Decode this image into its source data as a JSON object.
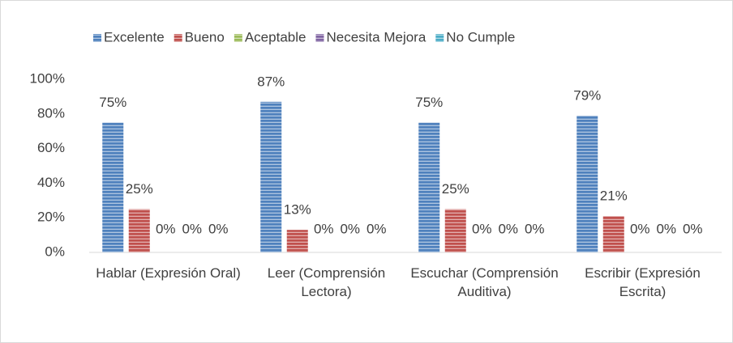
{
  "chart_data": {
    "type": "bar",
    "categories": [
      "Hablar (Expresión Oral)",
      "Leer (Comprensión Lectora)",
      "Escuchar (Comprensión Auditiva)",
      "Escribir (Expresión Escrita)"
    ],
    "series": [
      {
        "name": "Excelente",
        "color": "#4f81bd",
        "values": [
          75,
          87,
          75,
          79
        ],
        "value_labels": [
          "75%",
          "87%",
          "75%",
          "79%"
        ]
      },
      {
        "name": "Bueno",
        "color": "#c0504d",
        "values": [
          25,
          13,
          25,
          21
        ],
        "value_labels": [
          "25%",
          "13%",
          "25%",
          "21%"
        ]
      },
      {
        "name": "Aceptable",
        "color": "#9bbb59",
        "values": [
          0,
          0,
          0,
          0
        ],
        "value_labels": [
          "0%",
          "0%",
          "0%",
          "0%"
        ]
      },
      {
        "name": "Necesita Mejora",
        "color": "#8064a2",
        "values": [
          0,
          0,
          0,
          0
        ],
        "value_labels": [
          "0%",
          "0%",
          "0%",
          "0%"
        ]
      },
      {
        "name": "No Cumple",
        "color": "#4bacc6",
        "values": [
          0,
          0,
          0,
          0
        ],
        "value_labels": [
          "0%",
          "0%",
          "0%",
          "0%"
        ]
      }
    ],
    "ylim": [
      0,
      100
    ],
    "yticks": [
      {
        "value": 0,
        "label": "0%"
      },
      {
        "value": 20,
        "label": "20%"
      },
      {
        "value": 40,
        "label": "40%"
      },
      {
        "value": 60,
        "label": "60%"
      },
      {
        "value": 80,
        "label": "80%"
      },
      {
        "value": 100,
        "label": "100%"
      }
    ],
    "grid": false,
    "legend": "top"
  }
}
